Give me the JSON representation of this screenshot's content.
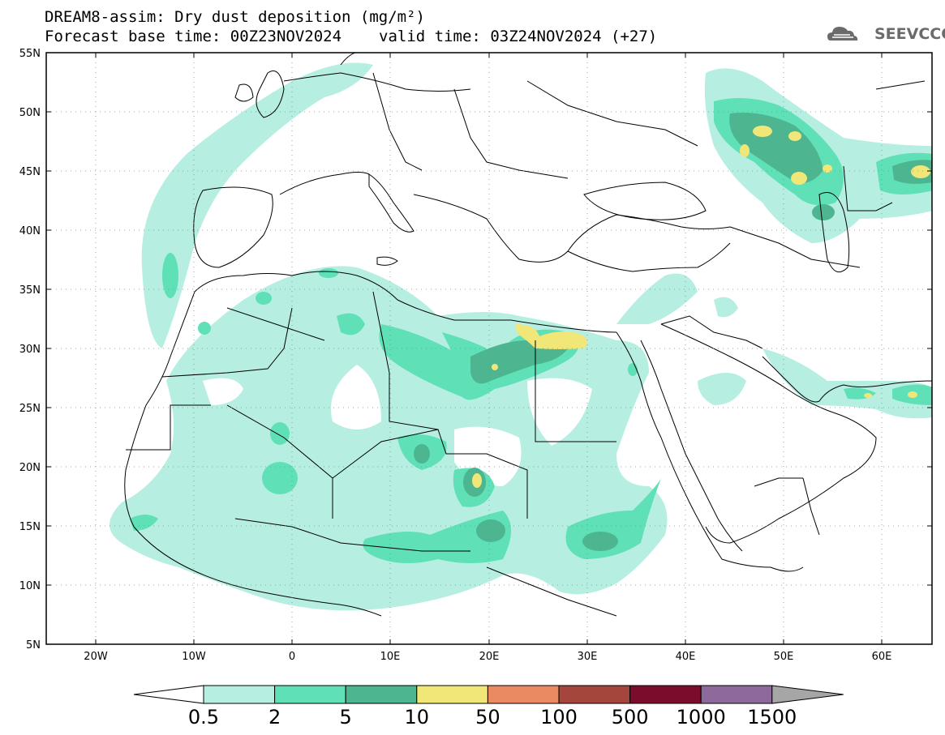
{
  "title": {
    "line1": "DREAM8-assim: Dry dust deposition (mg/m²)",
    "base_time": "Forecast base time: 00Z23NOV2024",
    "valid_time": "valid time: 03Z24NOV2024 (+27)"
  },
  "logo": {
    "text": "SEEVCCC",
    "icon": "cloud-logo-icon"
  },
  "axes": {
    "lon_labels": [
      "20W",
      "10W",
      "0",
      "10E",
      "20E",
      "30E",
      "40E",
      "50E",
      "60E"
    ],
    "lat_labels": [
      "55N",
      "50N",
      "45N",
      "40N",
      "35N",
      "30N",
      "25N",
      "20N",
      "15N",
      "10N",
      "5N"
    ],
    "lon_range": [
      -25,
      65
    ],
    "lat_range": [
      5,
      55
    ]
  },
  "colorbar": {
    "labels": [
      "0.5",
      "2",
      "5",
      "10",
      "50",
      "100",
      "500",
      "1000",
      "1500"
    ],
    "colors": [
      "#b6efe2",
      "#5fe0b6",
      "#4db58f",
      "#f1e678",
      "#e98a62",
      "#a5463d",
      "#7b0c2c",
      "#8e6a9c",
      "#a6a6a6"
    ]
  }
}
